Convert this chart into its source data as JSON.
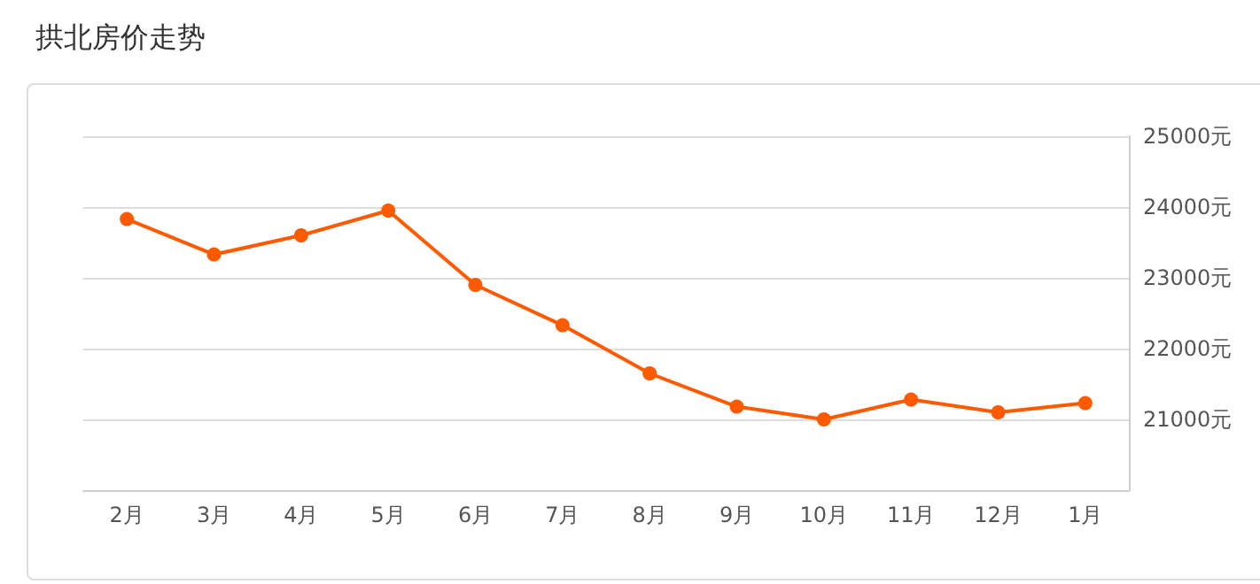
{
  "chart_data": {
    "type": "line",
    "title": "拱北房价走势",
    "categories": [
      "2月",
      "3月",
      "4月",
      "5月",
      "6月",
      "7月",
      "8月",
      "9月",
      "10月",
      "11月",
      "12月",
      "1月"
    ],
    "series": [
      {
        "color": "#ff5a00",
        "values": [
          23830,
          23330,
          23600,
          23950,
          22900,
          22330,
          21650,
          21180,
          21000,
          21280,
          21100,
          21230
        ]
      }
    ],
    "ylim": [
      20000,
      25000
    ],
    "yticks": [
      {
        "value": 21000,
        "label": "21000元"
      },
      {
        "value": 22000,
        "label": "22000元"
      },
      {
        "value": 23000,
        "label": "23000元"
      },
      {
        "value": 24000,
        "label": "24000元"
      },
      {
        "value": 25000,
        "label": "25000元"
      }
    ],
    "grid": "y",
    "marker": "circle",
    "line_style": "solid"
  }
}
